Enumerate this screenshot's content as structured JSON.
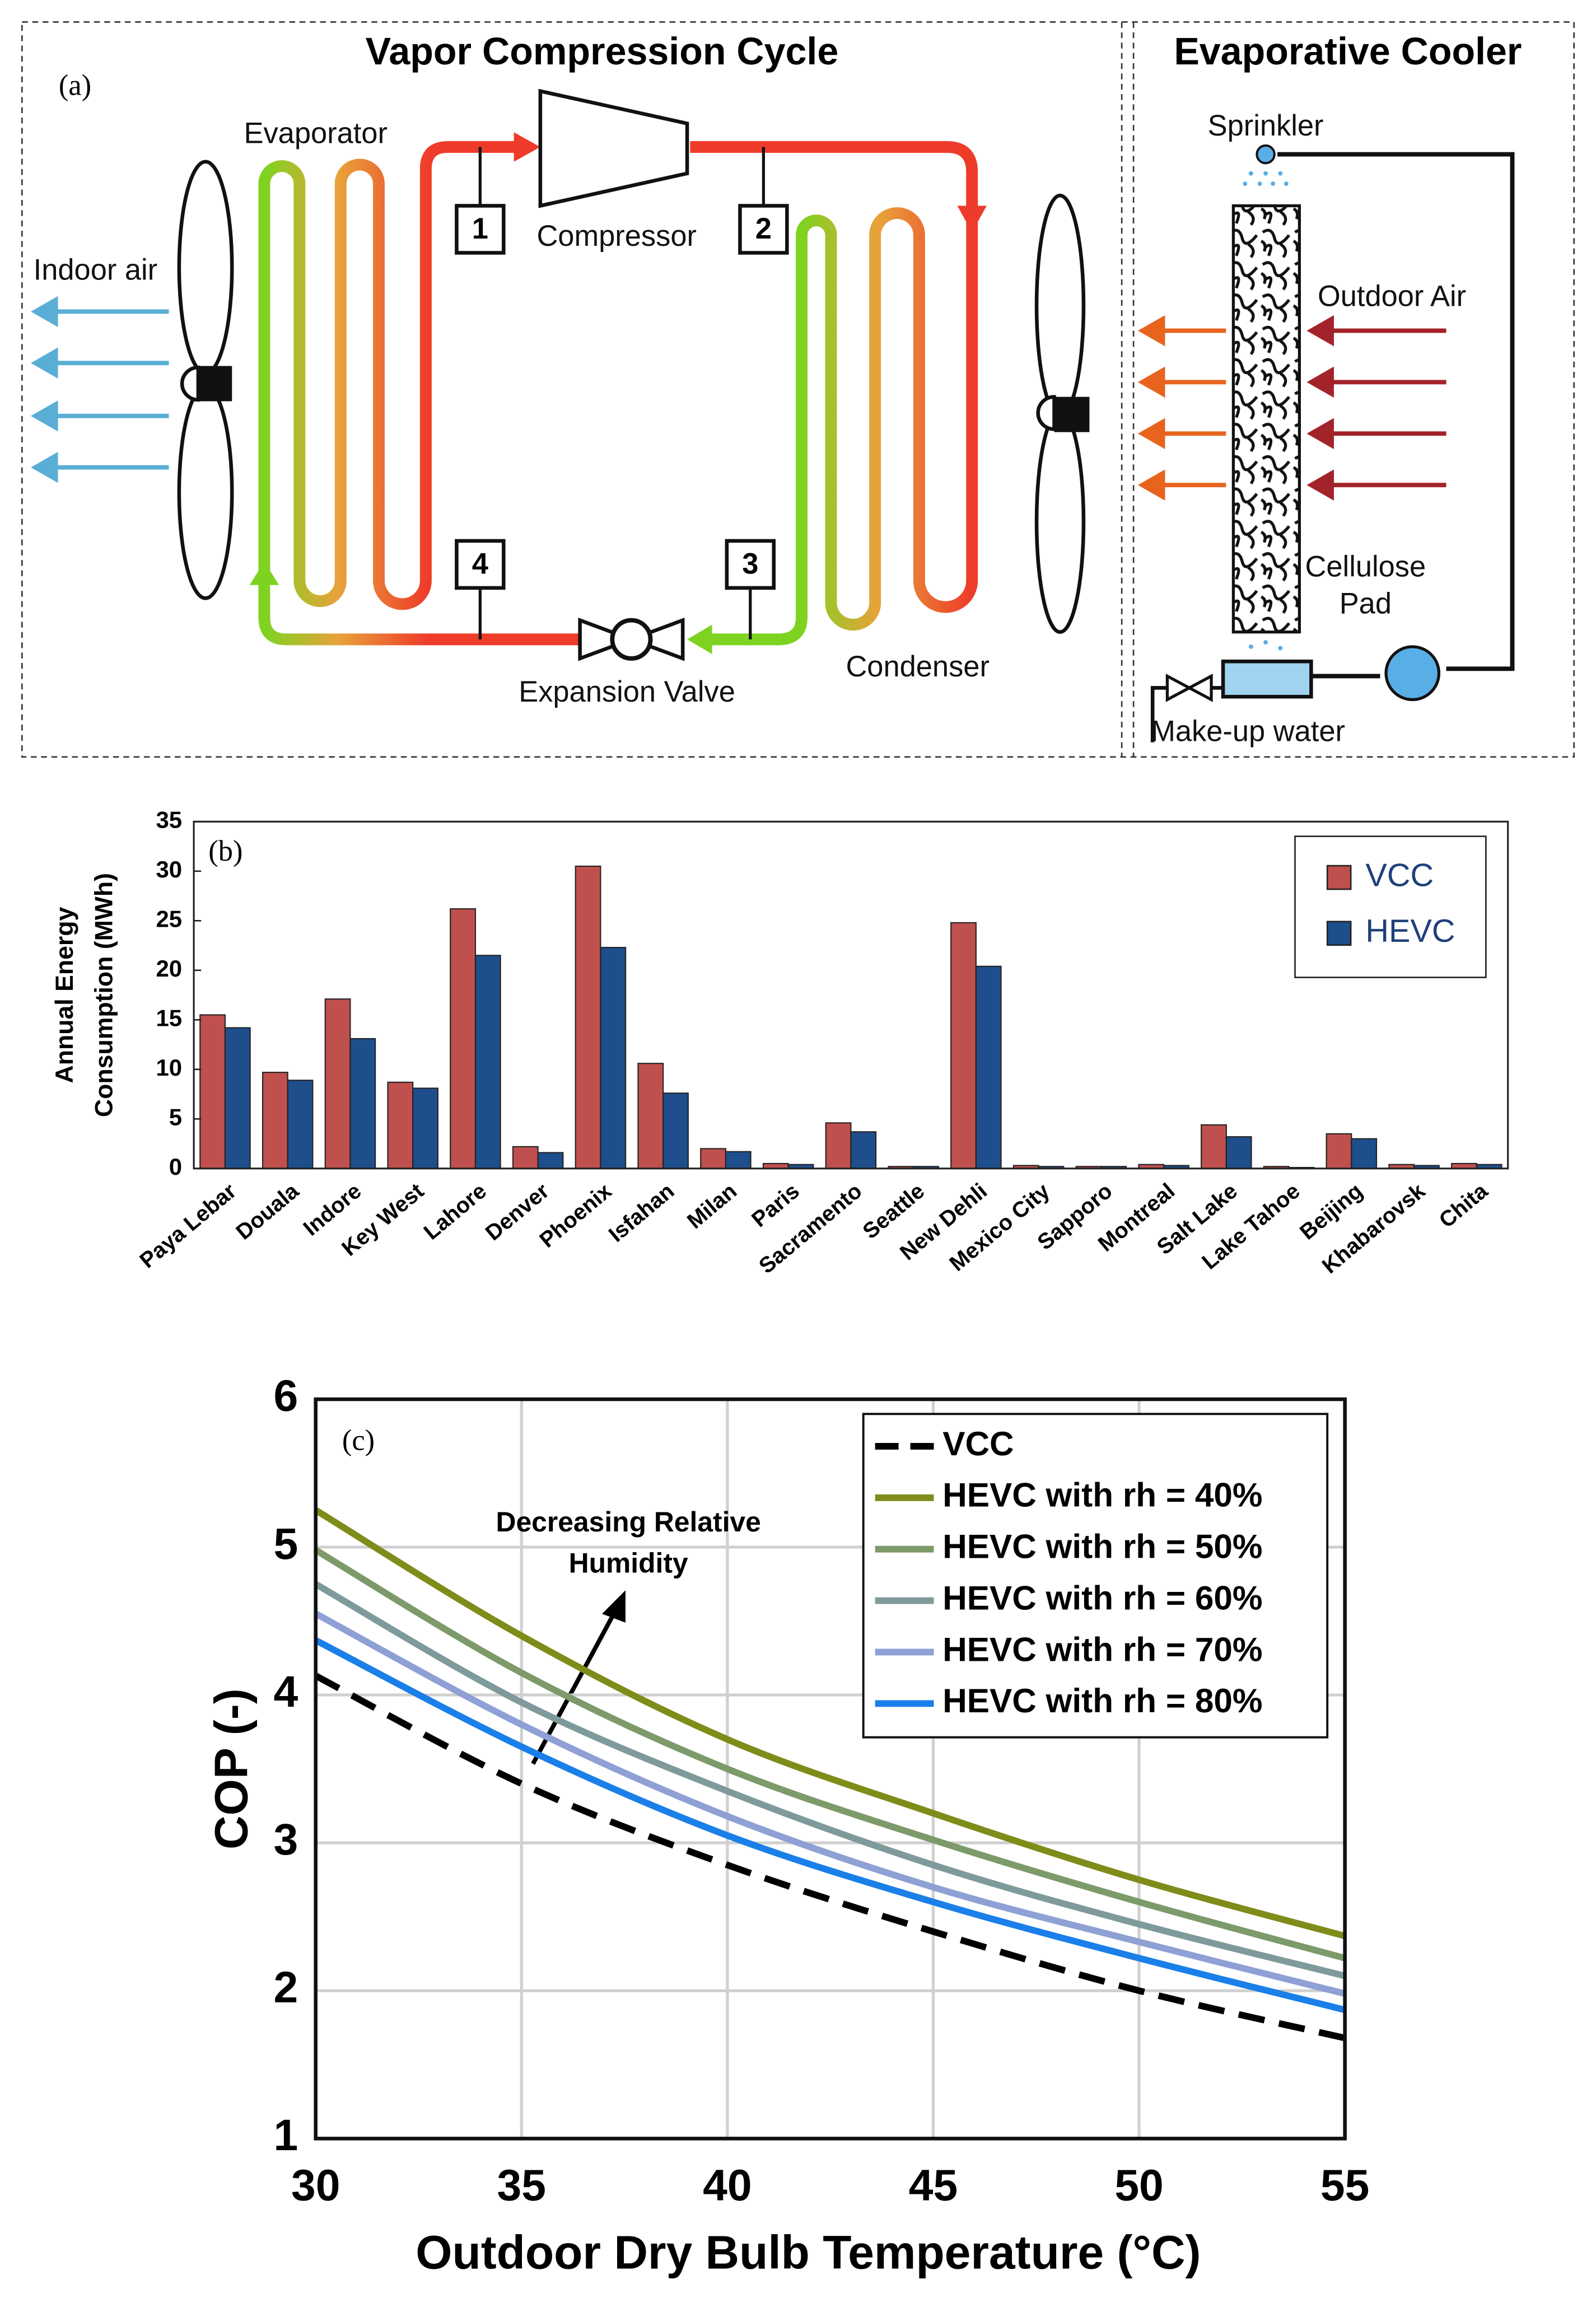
{
  "diagram": {
    "panel_label": "(a)",
    "sections": [
      "Vapor Compression Cycle",
      "Evaporative Cooler"
    ],
    "components": {
      "evaporator": "Evaporator",
      "compressor": "Compressor",
      "expansion_valve": "Expansion Valve",
      "condenser": "Condenser",
      "indoor_air": "Indoor air",
      "sprinkler": "Sprinkler",
      "outdoor_air": "Outdoor Air",
      "pad": [
        "Cellulose",
        "Pad"
      ],
      "makeup_water": "Make-up water"
    },
    "states": [
      "1",
      "2",
      "3",
      "4"
    ]
  },
  "chart_data": [
    {
      "type": "bar",
      "panel_label": "(b)",
      "ylabel": [
        "Annual Energy",
        "Consumption (MWh)"
      ],
      "categories": [
        "Paya Lebar",
        "Douala",
        "Indore",
        "Key West",
        "Lahore",
        "Denver",
        "Phoenix",
        "Isfahan",
        "Milan",
        "Paris",
        "Sacramento",
        "Seattle",
        "New Dehli",
        "Mexico City",
        "Sapporo",
        "Montreal",
        "Salt Lake",
        "Lake Tahoe",
        "Beijing",
        "Khabarovsk",
        "Chita"
      ],
      "series": [
        {
          "name": "VCC",
          "color": "#c0504d",
          "values": [
            15.5,
            9.7,
            17.1,
            8.7,
            26.2,
            2.2,
            30.5,
            10.6,
            2.0,
            0.5,
            4.6,
            0.2,
            24.8,
            0.3,
            0.2,
            0.4,
            4.4,
            0.2,
            3.5,
            0.4,
            0.5
          ]
        },
        {
          "name": "HEVC",
          "color": "#1f4e8c",
          "values": [
            14.2,
            8.9,
            13.1,
            8.1,
            21.5,
            1.6,
            22.3,
            7.6,
            1.7,
            0.4,
            3.7,
            0.2,
            20.4,
            0.2,
            0.2,
            0.3,
            3.2,
            0.1,
            3.0,
            0.3,
            0.4
          ]
        }
      ],
      "ylim": [
        0,
        35
      ],
      "yticks": [
        0,
        5,
        10,
        15,
        20,
        25,
        30,
        35
      ],
      "legend": "upper right"
    },
    {
      "type": "line",
      "panel_label": "(c)",
      "xlabel": "Outdoor Dry Bulb Temperature (°C)",
      "ylabel": "COP (-)",
      "annotation": [
        "Decreasing Relative",
        "Humidity"
      ],
      "x": [
        30,
        35,
        40,
        45,
        50,
        55
      ],
      "series": [
        {
          "name": "VCC",
          "color": "#000000",
          "linestyle": "dashed",
          "values": [
            4.13,
            3.4,
            2.85,
            2.4,
            2.0,
            1.68
          ]
        },
        {
          "name": "HEVC with rh = 40%",
          "color": "#7f8c1a",
          "linestyle": "solid",
          "values": [
            5.25,
            4.4,
            3.7,
            3.2,
            2.75,
            2.37
          ]
        },
        {
          "name": "HEVC with rh = 50%",
          "color": "#7d9a6a",
          "linestyle": "solid",
          "values": [
            4.98,
            4.15,
            3.5,
            3.02,
            2.6,
            2.22
          ]
        },
        {
          "name": "HEVC with rh = 60%",
          "color": "#7f9a9a",
          "linestyle": "solid",
          "values": [
            4.75,
            3.95,
            3.35,
            2.85,
            2.45,
            2.1
          ]
        },
        {
          "name": "HEVC with rh = 70%",
          "color": "#8ea0d4",
          "linestyle": "solid",
          "values": [
            4.55,
            3.8,
            3.18,
            2.7,
            2.33,
            1.98
          ]
        },
        {
          "name": "HEVC with rh = 80%",
          "color": "#1a7fe8",
          "linestyle": "solid",
          "values": [
            4.37,
            3.65,
            3.05,
            2.6,
            2.22,
            1.87
          ]
        }
      ],
      "xlim": [
        30,
        55
      ],
      "xticks": [
        30,
        35,
        40,
        45,
        50,
        55
      ],
      "ylim": [
        1,
        6
      ],
      "yticks": [
        1,
        2,
        3,
        4,
        5,
        6
      ],
      "grid": true,
      "legend": "upper right"
    }
  ]
}
